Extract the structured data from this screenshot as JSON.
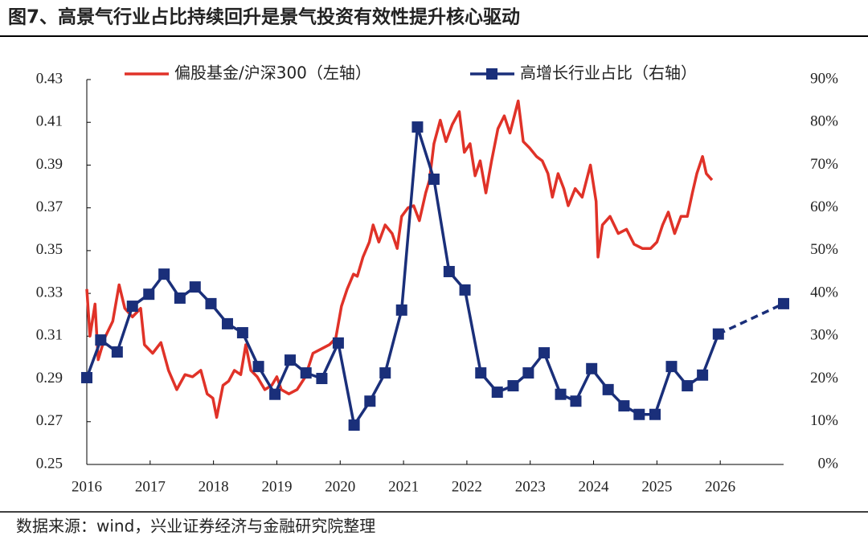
{
  "chart_data": {
    "type": "line",
    "title": "图7、高景气行业占比持续回升是景气投资有效性提升核心驱动",
    "source": "数据来源：wind，兴业证券经济与金融研究院整理",
    "xlim": [
      2016,
      2027
    ],
    "xticks": [
      2016,
      2017,
      2018,
      2019,
      2020,
      2021,
      2022,
      2023,
      2024,
      2025,
      2026
    ],
    "ylim": [
      0.25,
      0.43
    ],
    "yticks": [
      0.25,
      0.27,
      0.29,
      0.31,
      0.33,
      0.35,
      0.37,
      0.39,
      0.41,
      0.43
    ],
    "y2lim": [
      0,
      90
    ],
    "y2ticks": [
      {
        "value": 0,
        "label": "0%"
      },
      {
        "value": 10,
        "label": "10%"
      },
      {
        "value": 20,
        "label": "20%"
      },
      {
        "value": 30,
        "label": "30%"
      },
      {
        "value": 40,
        "label": "40%"
      },
      {
        "value": 50,
        "label": "50%"
      },
      {
        "value": 60,
        "label": "60%"
      },
      {
        "value": 70,
        "label": "70%"
      },
      {
        "value": 80,
        "label": "80%"
      },
      {
        "value": 90,
        "label": "90%"
      }
    ],
    "series": [
      {
        "name": "偏股基金/沪深300（左轴）",
        "color": "#e03228",
        "axis": "y",
        "x": [
          2016.0,
          2016.05,
          2016.13,
          2016.18,
          2016.28,
          2016.41,
          2016.51,
          2016.6,
          2016.72,
          2016.85,
          2016.91,
          2017.04,
          2017.17,
          2017.29,
          2017.42,
          2017.55,
          2017.67,
          2017.8,
          2017.9,
          2017.99,
          2018.05,
          2018.15,
          2018.24,
          2018.33,
          2018.43,
          2018.51,
          2018.59,
          2018.69,
          2018.81,
          2018.92,
          2019.0,
          2019.07,
          2019.19,
          2019.32,
          2019.45,
          2019.57,
          2019.7,
          2019.83,
          2019.93,
          2020.02,
          2020.11,
          2020.21,
          2020.27,
          2020.36,
          2020.46,
          2020.52,
          2020.61,
          2020.71,
          2020.82,
          2020.9,
          2020.97,
          2021.07,
          2021.16,
          2021.25,
          2021.35,
          2021.41,
          2021.48,
          2021.58,
          2021.67,
          2021.77,
          2021.88,
          2021.96,
          2022.05,
          2022.13,
          2022.21,
          2022.3,
          2022.39,
          2022.49,
          2022.59,
          2022.68,
          2022.81,
          2022.89,
          2022.99,
          2023.1,
          2023.19,
          2023.28,
          2023.35,
          2023.44,
          2023.53,
          2023.6,
          2023.71,
          2023.82,
          2023.95,
          2024.04,
          2024.07,
          2024.14,
          2024.26,
          2024.39,
          2024.52,
          2024.64,
          2024.77,
          2024.9,
          2025.0,
          2025.09,
          2025.18,
          2025.28,
          2025.38,
          2025.48,
          2025.56,
          2025.63,
          2025.72,
          2025.78,
          2025.87
        ],
        "values": [
          0.332,
          0.31,
          0.325,
          0.299,
          0.309,
          0.317,
          0.334,
          0.323,
          0.319,
          0.323,
          0.306,
          0.302,
          0.307,
          0.294,
          0.285,
          0.292,
          0.291,
          0.294,
          0.283,
          0.281,
          0.272,
          0.287,
          0.289,
          0.294,
          0.292,
          0.306,
          0.294,
          0.291,
          0.285,
          0.287,
          0.291,
          0.285,
          0.283,
          0.285,
          0.291,
          0.302,
          0.304,
          0.306,
          0.309,
          0.324,
          0.332,
          0.339,
          0.338,
          0.347,
          0.354,
          0.362,
          0.354,
          0.362,
          0.358,
          0.351,
          0.366,
          0.37,
          0.371,
          0.364,
          0.377,
          0.383,
          0.4,
          0.411,
          0.401,
          0.409,
          0.415,
          0.396,
          0.4,
          0.385,
          0.392,
          0.377,
          0.392,
          0.407,
          0.413,
          0.405,
          0.42,
          0.401,
          0.398,
          0.394,
          0.392,
          0.386,
          0.375,
          0.386,
          0.379,
          0.371,
          0.379,
          0.375,
          0.39,
          0.373,
          0.347,
          0.362,
          0.366,
          0.358,
          0.36,
          0.353,
          0.351,
          0.351,
          0.354,
          0.362,
          0.368,
          0.358,
          0.366,
          0.366,
          0.377,
          0.386,
          0.394,
          0.386,
          0.383
        ]
      },
      {
        "name": "高增长行业占比（右轴）",
        "color": "#1a2f7a",
        "axis": "y2",
        "marker": "square",
        "dashed_from_index": 40,
        "x": [
          2016.0,
          2016.22,
          2016.48,
          2016.72,
          2016.98,
          2017.22,
          2017.47,
          2017.71,
          2017.96,
          2018.22,
          2018.46,
          2018.71,
          2018.97,
          2019.21,
          2019.46,
          2019.71,
          2019.97,
          2020.22,
          2020.47,
          2020.71,
          2020.97,
          2021.22,
          2021.48,
          2021.72,
          2021.97,
          2022.22,
          2022.48,
          2022.73,
          2022.97,
          2023.22,
          2023.48,
          2023.72,
          2023.97,
          2024.23,
          2024.48,
          2024.72,
          2024.97,
          2025.23,
          2025.48,
          2025.72,
          2025.97,
          2027.0
        ],
        "values": [
          20.3,
          29.1,
          26.3,
          37.0,
          39.8,
          44.5,
          38.9,
          41.5,
          37.6,
          32.9,
          30.8,
          22.9,
          16.4,
          24.4,
          21.4,
          20.1,
          28.4,
          9.2,
          14.8,
          21.4,
          36.1,
          78.9,
          66.7,
          45.1,
          40.8,
          21.4,
          16.9,
          18.4,
          21.4,
          26.1,
          16.4,
          14.8,
          22.4,
          17.5,
          13.7,
          11.7,
          11.7,
          22.9,
          18.4,
          20.9,
          30.5,
          37.6
        ]
      }
    ]
  }
}
